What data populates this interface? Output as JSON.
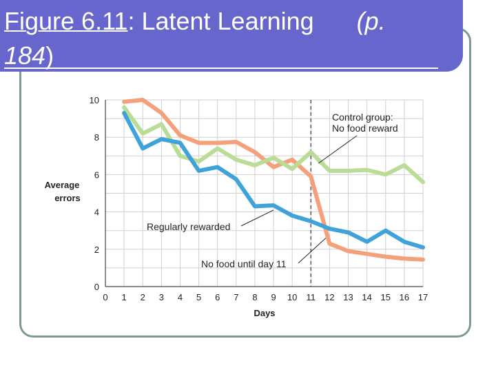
{
  "slide": {
    "title_prefix": "Figure 6.11",
    "title_main": ": Latent Learning",
    "title_paren_open": "(p.",
    "title_line2_num": "184",
    "title_line2_close": ")"
  },
  "chart_data": {
    "type": "line",
    "title": "",
    "xlabel": "Days",
    "ylabel": [
      "Average",
      "errors"
    ],
    "xlim": [
      0,
      17
    ],
    "ylim": [
      0,
      10
    ],
    "x_ticks": [
      0,
      1,
      2,
      3,
      4,
      5,
      6,
      7,
      8,
      9,
      10,
      11,
      12,
      13,
      14,
      15,
      16,
      17
    ],
    "y_ticks": [
      0,
      2,
      4,
      6,
      8,
      10
    ],
    "grid": true,
    "reference_line": {
      "x": 11
    },
    "series": [
      {
        "name": "",
        "color": "#f4a07a",
        "x": [
          1,
          2,
          3,
          4,
          5,
          6,
          7,
          8,
          9,
          10,
          11,
          12,
          13,
          14,
          15,
          16,
          17
        ],
        "values": [
          9.9,
          10.0,
          9.3,
          8.1,
          7.7,
          7.7,
          7.75,
          7.2,
          6.4,
          6.8,
          5.9,
          2.3,
          1.9,
          1.75,
          1.6,
          1.5,
          1.45
        ]
      },
      {
        "name": "",
        "color": "#b9dc97",
        "x": [
          1,
          2,
          3,
          4,
          5,
          6,
          7,
          8,
          9,
          10,
          11,
          12,
          13,
          14,
          15,
          16,
          17
        ],
        "values": [
          9.6,
          8.2,
          8.7,
          7.0,
          6.7,
          7.4,
          6.8,
          6.5,
          6.9,
          6.3,
          7.2,
          6.2,
          6.2,
          6.25,
          6.0,
          6.5,
          5.6
        ]
      },
      {
        "name": "",
        "color": "#3fa2d8",
        "x": [
          1,
          2,
          3,
          4,
          5,
          6,
          7,
          8,
          9,
          10,
          11,
          12,
          13,
          14,
          15,
          16,
          17
        ],
        "values": [
          9.3,
          7.4,
          7.9,
          7.7,
          6.2,
          6.4,
          5.75,
          4.3,
          4.35,
          3.8,
          3.5,
          3.1,
          2.9,
          2.4,
          3.0,
          2.4,
          2.1
        ]
      }
    ],
    "annotations": [
      {
        "text_lines": [
          "Control group:",
          "No food reward"
        ],
        "points_to": {
          "x": 11.4,
          "y": 6.6
        }
      },
      {
        "text_lines": [
          "Regularly rewarded"
        ],
        "points_to": {
          "x": 9.0,
          "y": 4.1
        }
      },
      {
        "text_lines": [
          "No food until day 11"
        ],
        "points_to": {
          "x": 11.8,
          "y": 2.6
        }
      }
    ]
  }
}
